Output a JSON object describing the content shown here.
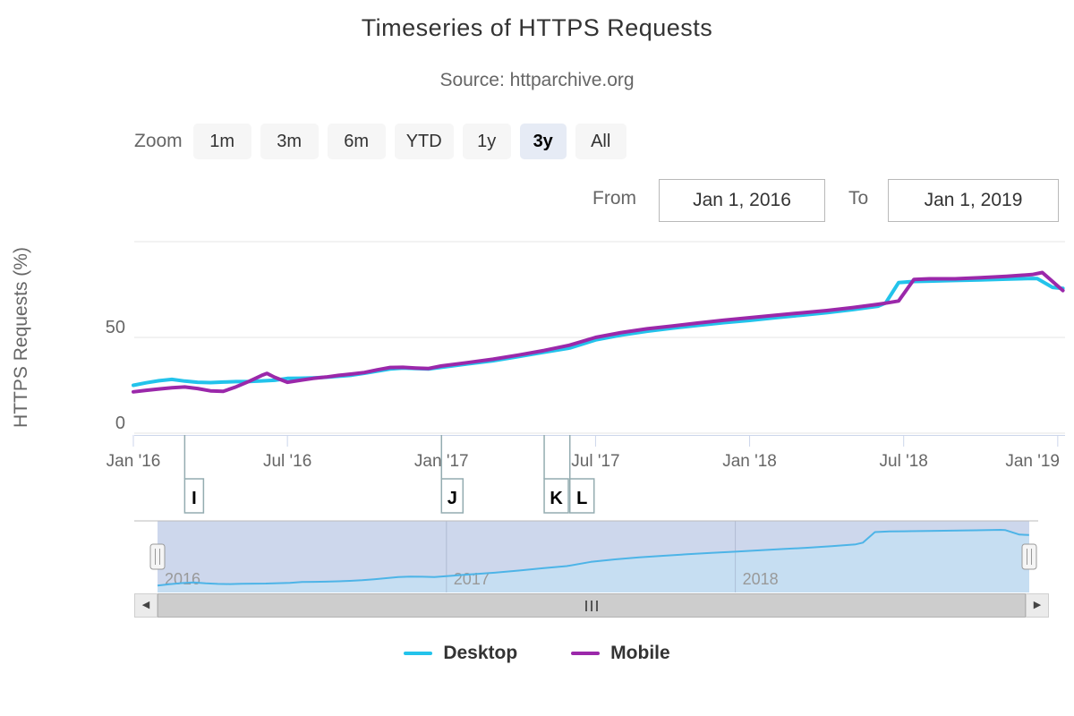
{
  "header": {
    "title": "Timeseries of HTTPS Requests",
    "subtitle": "Source: httparchive.org"
  },
  "range_selector": {
    "zoom_label": "Zoom",
    "buttons": [
      {
        "label": "1m",
        "selected": false
      },
      {
        "label": "3m",
        "selected": false
      },
      {
        "label": "6m",
        "selected": false
      },
      {
        "label": "YTD",
        "selected": false
      },
      {
        "label": "1y",
        "selected": false
      },
      {
        "label": "3y",
        "selected": true
      },
      {
        "label": "All",
        "selected": false
      }
    ],
    "selected_background": "#e6ebf5",
    "from_label": "From",
    "from_value": "Jan 1, 2016",
    "to_label": "To",
    "to_value": "Jan 1, 2019"
  },
  "legend": [
    {
      "label": "Desktop",
      "color": "#23c3eb"
    },
    {
      "label": "Mobile",
      "color": "#9b28aa"
    }
  ],
  "scrollbar": {
    "left_arrow": "◀",
    "right_arrow": "▶"
  },
  "chart_data": {
    "type": "line",
    "title": "Timeseries of HTTPS Requests",
    "subtitle": "Source: httparchive.org",
    "xlabel": "",
    "ylabel": "HTTPS Requests (%)",
    "x_unit": "months since Jan 2016",
    "xlim": [
      0,
      36.2
    ],
    "ylim": [
      0,
      102
    ],
    "grid": true,
    "legend_position": "bottom",
    "y_ticks": [
      {
        "value": 0,
        "label": "0"
      },
      {
        "value": 50,
        "label": "50"
      },
      {
        "value": 100,
        "label": ""
      }
    ],
    "x_ticks": [
      {
        "m": 0,
        "label": "Jan '16"
      },
      {
        "m": 6,
        "label": "Jul '16"
      },
      {
        "m": 12,
        "label": "Jan '17"
      },
      {
        "m": 18,
        "label": "Jul '17"
      },
      {
        "m": 24,
        "label": "Jan '18"
      },
      {
        "m": 30,
        "label": "Jul '18"
      },
      {
        "m": 36,
        "label": "Jan '19"
      }
    ],
    "flags": [
      {
        "label": "I",
        "m": 2,
        "date": "Mar 2016"
      },
      {
        "label": "J",
        "m": 12,
        "date": "Jan 2017"
      },
      {
        "label": "K",
        "m": 16,
        "date": "May 2017"
      },
      {
        "label": "L",
        "m": 17,
        "date": "Jun 2017"
      }
    ],
    "series": [
      {
        "name": "Desktop",
        "color": "#23c3eb",
        "points": [
          [
            0,
            25.0
          ],
          [
            0.5,
            26.3
          ],
          [
            1,
            27.4
          ],
          [
            1.5,
            28.1
          ],
          [
            2,
            27.2
          ],
          [
            2.5,
            26.6
          ],
          [
            3,
            26.4
          ],
          [
            3.5,
            26.7
          ],
          [
            4,
            26.9
          ],
          [
            4.5,
            27.0
          ],
          [
            5,
            27.3
          ],
          [
            5.5,
            27.6
          ],
          [
            6,
            28.6
          ],
          [
            6.5,
            28.7
          ],
          [
            7,
            28.9
          ],
          [
            7.5,
            29.2
          ],
          [
            8,
            29.7
          ],
          [
            8.5,
            30.3
          ],
          [
            9,
            31.3
          ],
          [
            9.5,
            32.4
          ],
          [
            10,
            33.5
          ],
          [
            10.5,
            34.0
          ],
          [
            11,
            33.8
          ],
          [
            11.5,
            33.5
          ],
          [
            12,
            34.4
          ],
          [
            13,
            36.1
          ],
          [
            14,
            37.8
          ],
          [
            15,
            40.0
          ],
          [
            16,
            42.3
          ],
          [
            17,
            44.5
          ],
          [
            18,
            48.7
          ],
          [
            19,
            51.2
          ],
          [
            20,
            53.2
          ],
          [
            21,
            54.8
          ],
          [
            22,
            56.3
          ],
          [
            23,
            57.7
          ],
          [
            24,
            58.9
          ],
          [
            25,
            60.3
          ],
          [
            26,
            61.6
          ],
          [
            27,
            62.9
          ],
          [
            28,
            64.5
          ],
          [
            29,
            66.3
          ],
          [
            29.3,
            68.0
          ],
          [
            29.8,
            78.6
          ],
          [
            30.4,
            79.2
          ],
          [
            31,
            79.4
          ],
          [
            32,
            79.7
          ],
          [
            33,
            80.0
          ],
          [
            34,
            80.4
          ],
          [
            35,
            80.8
          ],
          [
            35.2,
            80.7
          ],
          [
            35.8,
            76.1
          ],
          [
            36.2,
            75.6
          ]
        ]
      },
      {
        "name": "Mobile",
        "color": "#9b28aa",
        "points": [
          [
            0,
            21.6
          ],
          [
            0.5,
            22.4
          ],
          [
            1,
            23.1
          ],
          [
            1.5,
            23.7
          ],
          [
            2,
            24.1
          ],
          [
            2.5,
            23.3
          ],
          [
            3,
            22.1
          ],
          [
            3.5,
            21.8
          ],
          [
            4,
            24.2
          ],
          [
            4.5,
            27.0
          ],
          [
            5,
            30.2
          ],
          [
            5.2,
            31.2
          ],
          [
            5.5,
            29.2
          ],
          [
            6,
            26.6
          ],
          [
            6.5,
            27.6
          ],
          [
            7,
            28.6
          ],
          [
            7.5,
            29.3
          ],
          [
            8,
            30.2
          ],
          [
            8.5,
            30.9
          ],
          [
            9,
            31.7
          ],
          [
            9.5,
            33.1
          ],
          [
            10,
            34.3
          ],
          [
            10.5,
            34.4
          ],
          [
            11,
            34.0
          ],
          [
            11.5,
            33.8
          ],
          [
            12,
            35.1
          ],
          [
            13,
            36.8
          ],
          [
            14,
            38.6
          ],
          [
            15,
            40.8
          ],
          [
            16,
            43.2
          ],
          [
            17,
            46.0
          ],
          [
            18,
            50.0
          ],
          [
            19,
            52.5
          ],
          [
            20,
            54.5
          ],
          [
            21,
            56.0
          ],
          [
            22,
            57.5
          ],
          [
            23,
            59.0
          ],
          [
            24,
            60.3
          ],
          [
            25,
            61.6
          ],
          [
            26,
            62.8
          ],
          [
            27,
            64.0
          ],
          [
            28,
            65.5
          ],
          [
            29,
            67.3
          ],
          [
            29.3,
            67.9
          ],
          [
            29.8,
            69.0
          ],
          [
            30.4,
            80.3
          ],
          [
            31,
            80.6
          ],
          [
            32,
            80.6
          ],
          [
            33,
            81.2
          ],
          [
            34,
            81.9
          ],
          [
            35,
            82.8
          ],
          [
            35.4,
            83.9
          ],
          [
            36.2,
            74.5
          ]
        ]
      }
    ],
    "navigator": {
      "series": "Desktop",
      "line_color": "#4db4e7",
      "mask_fill": "#cdd7ec",
      "area_fill": "#c6def2",
      "year_labels": [
        {
          "m": 0,
          "label": "2016"
        },
        {
          "m": 12,
          "label": "2017"
        },
        {
          "m": 24,
          "label": "2018"
        }
      ]
    }
  }
}
